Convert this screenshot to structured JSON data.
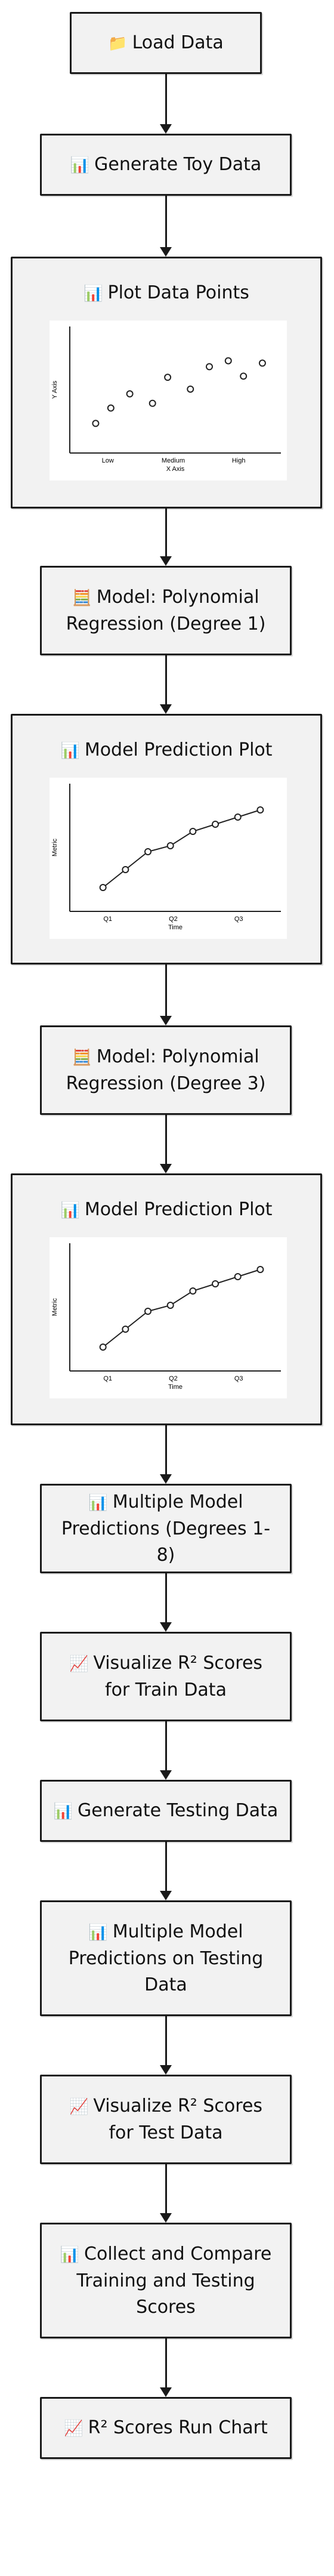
{
  "nodes": [
    {
      "id": "load",
      "text": "Load Data",
      "icon": "folder-icon",
      "glyph": "📁"
    },
    {
      "id": "toy",
      "text": "Generate Toy Data",
      "icon": "bar-chart-icon",
      "glyph": "📊"
    },
    {
      "id": "plot_points",
      "text": "Plot Data Points",
      "icon": "bar-chart-icon",
      "glyph": "📊"
    },
    {
      "id": "model1",
      "text": "Model: Polynomial\nRegression (Degree 1)",
      "icon": "computer-icon",
      "glyph": "🧮"
    },
    {
      "id": "pred1",
      "text": "Model Prediction Plot",
      "icon": "bar-chart-icon",
      "glyph": "📊"
    },
    {
      "id": "model3",
      "text": "Model: Polynomial\nRegression (Degree 3)",
      "icon": "computer-icon",
      "glyph": "🧮"
    },
    {
      "id": "pred3",
      "text": "Model Prediction Plot",
      "icon": "bar-chart-icon",
      "glyph": "📊"
    },
    {
      "id": "multi",
      "text": "Multiple Model\nPredictions (Degrees 1-8)",
      "icon": "bar-chart-icon",
      "glyph": "📊"
    },
    {
      "id": "viz_train",
      "text": "Visualize R² Scores\nfor Train Data",
      "icon": "line-chart-icon",
      "glyph": "📈"
    },
    {
      "id": "gen_test",
      "text": "Generate Testing Data",
      "icon": "bar-chart-icon",
      "glyph": "📊"
    },
    {
      "id": "multi_test",
      "text": "Multiple Model\nPredictions on Testing\nData",
      "icon": "bar-chart-icon",
      "glyph": "📊"
    },
    {
      "id": "viz_test",
      "text": "Visualize R² Scores\nfor Test Data",
      "icon": "line-chart-icon",
      "glyph": "📈"
    },
    {
      "id": "collect",
      "text": "Collect and Compare\nTraining and Testing\nScores",
      "icon": "bar-chart-icon",
      "glyph": "📊"
    },
    {
      "id": "run_chart",
      "text": "R² Scores Run Chart",
      "icon": "line-chart-icon",
      "glyph": "📈"
    }
  ],
  "chart_data": [
    {
      "type": "scatter",
      "categories": [
        "Low",
        "Medium",
        "High"
      ],
      "xlabel": "X Axis",
      "ylabel": "Y Axis",
      "ylim": [
        0,
        10
      ],
      "series": [
        {
          "x": [
            0.8,
            1.6,
            2.6,
            3.8,
            4.6,
            5.8,
            6.8,
            7.8,
            8.6,
            9.6
          ],
          "y": [
            2.0,
            3.3,
            4.5,
            3.7,
            5.9,
            4.9,
            6.8,
            7.3,
            6.0,
            7.1
          ]
        }
      ]
    },
    {
      "type": "line",
      "categories": [
        "Q1",
        "Q2",
        "Q3"
      ],
      "xlabel": "Time",
      "ylabel": "Metric",
      "ylim": [
        0,
        10
      ],
      "series": [
        {
          "x": [
            1,
            2,
            3,
            4,
            5,
            6,
            7,
            8
          ],
          "y": [
            1.5,
            3.0,
            4.5,
            5.0,
            6.2,
            6.8,
            7.4,
            8.0
          ]
        }
      ]
    },
    {
      "type": "line",
      "categories": [
        "Q1",
        "Q2",
        "Q3"
      ],
      "xlabel": "Time",
      "ylabel": "Metric",
      "ylim": [
        0,
        10
      ],
      "series": [
        {
          "x": [
            1,
            2,
            3,
            4,
            5,
            6,
            7,
            8
          ],
          "y": [
            1.5,
            3.0,
            4.5,
            5.0,
            6.2,
            6.8,
            7.4,
            8.0
          ]
        }
      ]
    }
  ]
}
